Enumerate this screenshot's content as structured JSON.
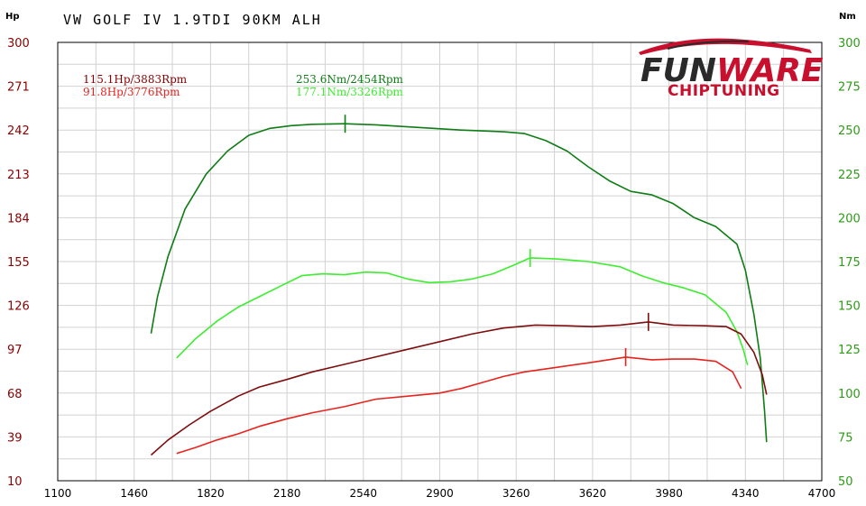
{
  "chart_data": {
    "type": "line",
    "title": "VW GOLF IV 1.9TDI  90KM ALH",
    "y_left_unit": "Hp",
    "y_right_unit": "Nm",
    "xlim": [
      1100,
      4700
    ],
    "ylim_left": [
      10,
      300
    ],
    "ylim_right": [
      50,
      300
    ],
    "x_ticks": [
      "1100",
      "1460",
      "1820",
      "2180",
      "2540",
      "2900",
      "3260",
      "3620",
      "3980",
      "4340",
      "4700"
    ],
    "y_left_ticks": [
      "10",
      "39",
      "68",
      "97",
      "126",
      "155",
      "184",
      "213",
      "242",
      "271",
      "300"
    ],
    "y_right_ticks": [
      "50",
      "75",
      "100",
      "125",
      "150",
      "175",
      "200",
      "225",
      "250",
      "275",
      "300"
    ],
    "grid": true,
    "series": [
      {
        "axis": "right",
        "color": "#0d7d14",
        "peak": {
          "x": 2454,
          "y": 253.6
        },
        "points": [
          [
            1540,
            134
          ],
          [
            1570,
            155
          ],
          [
            1620,
            178
          ],
          [
            1700,
            205
          ],
          [
            1800,
            225
          ],
          [
            1900,
            238
          ],
          [
            2000,
            247
          ],
          [
            2100,
            251
          ],
          [
            2200,
            252.5
          ],
          [
            2300,
            253.3
          ],
          [
            2454,
            253.6
          ],
          [
            2600,
            253
          ],
          [
            2800,
            251.5
          ],
          [
            3000,
            250
          ],
          [
            3200,
            249
          ],
          [
            3300,
            248
          ],
          [
            3400,
            244
          ],
          [
            3500,
            238
          ],
          [
            3600,
            229
          ],
          [
            3700,
            221
          ],
          [
            3800,
            215
          ],
          [
            3900,
            213
          ],
          [
            4000,
            208
          ],
          [
            4100,
            200
          ],
          [
            4200,
            195
          ],
          [
            4300,
            185
          ],
          [
            4340,
            170
          ],
          [
            4380,
            145
          ],
          [
            4410,
            120
          ],
          [
            4430,
            90
          ],
          [
            4440,
            72
          ]
        ]
      },
      {
        "axis": "right",
        "color": "#3ded2f",
        "peak": {
          "x": 3326,
          "y": 177.1
        },
        "points": [
          [
            1660,
            120
          ],
          [
            1750,
            131
          ],
          [
            1850,
            141
          ],
          [
            1950,
            149
          ],
          [
            2050,
            155
          ],
          [
            2150,
            161
          ],
          [
            2250,
            167
          ],
          [
            2350,
            168
          ],
          [
            2450,
            167.5
          ],
          [
            2550,
            169
          ],
          [
            2650,
            168.5
          ],
          [
            2750,
            165
          ],
          [
            2850,
            163
          ],
          [
            2950,
            163.5
          ],
          [
            3050,
            165
          ],
          [
            3150,
            168
          ],
          [
            3250,
            173
          ],
          [
            3326,
            177.1
          ],
          [
            3450,
            176.5
          ],
          [
            3600,
            175
          ],
          [
            3750,
            172
          ],
          [
            3850,
            167
          ],
          [
            3950,
            163
          ],
          [
            4050,
            160
          ],
          [
            4150,
            156
          ],
          [
            4250,
            146
          ],
          [
            4300,
            135
          ],
          [
            4330,
            125
          ],
          [
            4350,
            116
          ]
        ]
      },
      {
        "axis": "left",
        "color": "#7e0d0d",
        "peak": {
          "x": 3883,
          "y": 115.1
        },
        "points": [
          [
            1540,
            27
          ],
          [
            1620,
            37
          ],
          [
            1720,
            47
          ],
          [
            1820,
            56
          ],
          [
            1950,
            66
          ],
          [
            2050,
            72
          ],
          [
            2180,
            77
          ],
          [
            2300,
            82
          ],
          [
            2450,
            87
          ],
          [
            2600,
            92
          ],
          [
            2750,
            97
          ],
          [
            2900,
            102
          ],
          [
            3050,
            107
          ],
          [
            3200,
            111
          ],
          [
            3350,
            113
          ],
          [
            3500,
            112.5
          ],
          [
            3620,
            112
          ],
          [
            3750,
            113
          ],
          [
            3883,
            115.1
          ],
          [
            4000,
            113
          ],
          [
            4150,
            112.5
          ],
          [
            4250,
            112
          ],
          [
            4320,
            107
          ],
          [
            4380,
            95
          ],
          [
            4420,
            80
          ],
          [
            4440,
            67
          ]
        ]
      },
      {
        "axis": "left",
        "color": "#e8221d",
        "peak": {
          "x": 3776,
          "y": 91.8
        },
        "points": [
          [
            1660,
            28
          ],
          [
            1750,
            32
          ],
          [
            1850,
            37
          ],
          [
            1950,
            41
          ],
          [
            2050,
            46
          ],
          [
            2180,
            51
          ],
          [
            2300,
            55
          ],
          [
            2450,
            59
          ],
          [
            2600,
            64
          ],
          [
            2750,
            66
          ],
          [
            2900,
            68
          ],
          [
            3000,
            71
          ],
          [
            3100,
            75
          ],
          [
            3200,
            79
          ],
          [
            3300,
            82
          ],
          [
            3450,
            85
          ],
          [
            3600,
            88
          ],
          [
            3776,
            91.8
          ],
          [
            3900,
            90
          ],
          [
            4000,
            90.5
          ],
          [
            4100,
            90.5
          ],
          [
            4200,
            89
          ],
          [
            4280,
            82
          ],
          [
            4320,
            71
          ]
        ]
      }
    ],
    "annotations_left": [
      {
        "text": "115.1Hp/3883Rpm",
        "color": "#8b0000"
      },
      {
        "text": "91.8Hp/3776Rpm",
        "color": "#e8221d"
      }
    ],
    "annotations_right": [
      {
        "text": "253.6Nm/2454Rpm",
        "color": "#0d7d14"
      },
      {
        "text": "177.1Nm/3326Rpm",
        "color": "#3ded2f"
      }
    ]
  },
  "logo": {
    "brand_part1": "FUN",
    "brand_part2": "WARE",
    "tagline": "CHIPTUNING",
    "color_dark": "#2a2a2a",
    "color_red": "#c8102e"
  }
}
